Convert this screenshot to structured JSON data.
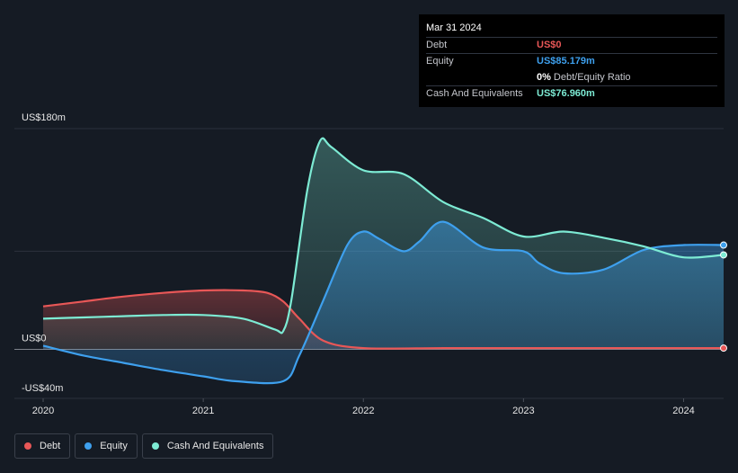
{
  "tooltip": {
    "date": "Mar 31 2024",
    "rows": [
      {
        "label": "Debt",
        "value": "US$0",
        "color": "#e85757"
      },
      {
        "label": "Equity",
        "value": "US$85.179m",
        "color": "#3ea0ee"
      },
      {
        "label": "",
        "ratio_value": "0%",
        "ratio_text": "Debt/Equity Ratio"
      },
      {
        "label": "Cash And Equivalents",
        "value": "US$76.960m",
        "color": "#7debd4"
      }
    ]
  },
  "legend": [
    {
      "label": "Debt",
      "color": "#e85757"
    },
    {
      "label": "Equity",
      "color": "#3ea0ee"
    },
    {
      "label": "Cash And Equivalents",
      "color": "#7debd4"
    }
  ],
  "chart_data": {
    "type": "line",
    "xlim": [
      2020.0,
      2024.25
    ],
    "ylim": [
      -40,
      180
    ],
    "y_tick_labels": [
      {
        "value": 180,
        "label": "US$180m"
      },
      {
        "value": 0,
        "label": "US$0"
      },
      {
        "value": -40,
        "label": "-US$40m"
      }
    ],
    "x_ticks": [
      {
        "value": 2020,
        "label": "2020"
      },
      {
        "value": 2021,
        "label": "2021"
      },
      {
        "value": 2022,
        "label": "2022"
      },
      {
        "value": 2023,
        "label": "2023"
      },
      {
        "value": 2024,
        "label": "2024"
      }
    ],
    "series": [
      {
        "name": "Debt",
        "color": "#e85757",
        "x": [
          2020.0,
          2020.25,
          2020.5,
          2020.75,
          2021.0,
          2021.25,
          2021.4,
          2021.5,
          2021.6,
          2021.75,
          2022.0,
          2022.5,
          2023.0,
          2023.5,
          2024.0,
          2024.25
        ],
        "y": [
          35,
          39,
          43,
          46,
          48,
          48,
          46,
          39,
          25,
          7,
          1,
          1,
          1,
          1,
          1,
          1
        ]
      },
      {
        "name": "Equity",
        "color": "#3ea0ee",
        "x": [
          2020.0,
          2020.25,
          2020.5,
          2020.75,
          2021.0,
          2021.2,
          2021.5,
          2021.6,
          2021.75,
          2021.9,
          2022.0,
          2022.1,
          2022.25,
          2022.35,
          2022.5,
          2022.75,
          2023.0,
          2023.1,
          2023.25,
          2023.5,
          2023.75,
          2024.0,
          2024.25
        ],
        "y": [
          3,
          -5,
          -11,
          -17,
          -22,
          -26,
          -26,
          -5,
          40,
          85,
          96,
          90,
          80,
          88,
          104,
          83,
          80,
          70,
          62,
          65,
          81,
          85,
          85
        ]
      },
      {
        "name": "Cash And Equivalents",
        "color": "#7debd4",
        "x": [
          2020.0,
          2020.25,
          2020.5,
          2020.75,
          2021.0,
          2021.25,
          2021.45,
          2021.5,
          2021.55,
          2021.65,
          2021.73,
          2021.8,
          2022.0,
          2022.25,
          2022.5,
          2022.75,
          2023.0,
          2023.25,
          2023.5,
          2023.75,
          2024.0,
          2024.25
        ],
        "y": [
          25,
          26,
          27,
          28,
          28,
          25,
          16,
          15,
          40,
          130,
          170,
          165,
          146,
          143,
          120,
          107,
          92,
          96,
          91,
          84,
          75,
          77
        ]
      }
    ]
  }
}
